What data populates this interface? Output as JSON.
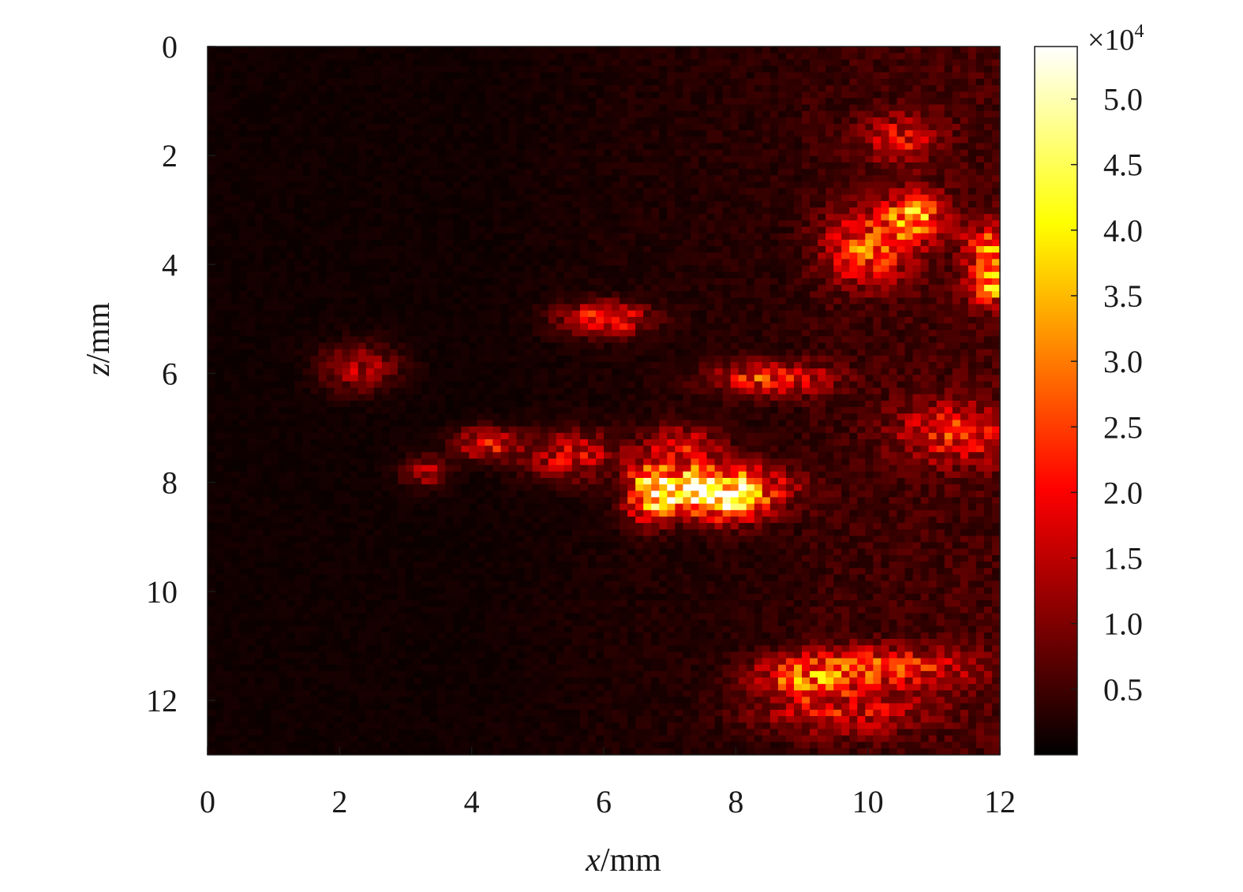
{
  "chart_data": {
    "type": "heatmap",
    "title": "",
    "xlabel": {
      "var": "x",
      "unit": "/mm"
    },
    "ylabel": {
      "var": "z",
      "unit": "/mm"
    },
    "xlim": [
      0,
      12
    ],
    "ylim": [
      0,
      13
    ],
    "y_inverted": true,
    "x_ticks": [
      "0",
      "2",
      "4",
      "6",
      "8",
      "10",
      "12"
    ],
    "y_ticks": [
      "0",
      "2",
      "4",
      "6",
      "8",
      "10",
      "12"
    ],
    "colormap": "hot",
    "colorbar": {
      "range": [
        0,
        5.4
      ],
      "multiplier_base": "×10",
      "multiplier_exp": "4",
      "ticks": [
        "0.5",
        "1.0",
        "1.5",
        "2.0",
        "2.5",
        "3.0",
        "3.5",
        "4.0",
        "4.5",
        "5.0"
      ]
    },
    "grid": false,
    "hotspots": [
      {
        "x": 7.4,
        "z": 8.15,
        "value": 5.2,
        "sx": 0.35,
        "sz": 0.25
      },
      {
        "x": 6.7,
        "z": 8.2,
        "value": 4.0,
        "sx": 0.25,
        "sz": 0.35
      },
      {
        "x": 7.9,
        "z": 8.3,
        "value": 2.8,
        "sx": 0.35,
        "sz": 0.3
      },
      {
        "x": 6.0,
        "z": 5.0,
        "value": 2.4,
        "sx": 0.45,
        "sz": 0.2
      },
      {
        "x": 8.5,
        "z": 6.1,
        "value": 2.3,
        "sx": 0.6,
        "sz": 0.2
      },
      {
        "x": 10.7,
        "z": 3.1,
        "value": 3.0,
        "sx": 0.3,
        "sz": 0.3
      },
      {
        "x": 10.0,
        "z": 3.7,
        "value": 2.4,
        "sx": 0.45,
        "sz": 0.45
      },
      {
        "x": 11.9,
        "z": 3.7,
        "value": 2.5,
        "sx": 0.3,
        "sz": 0.3
      },
      {
        "x": 11.9,
        "z": 4.4,
        "value": 2.8,
        "sx": 0.25,
        "sz": 0.25
      },
      {
        "x": 4.2,
        "z": 7.3,
        "value": 2.2,
        "sx": 0.3,
        "sz": 0.2
      },
      {
        "x": 10.2,
        "z": 11.4,
        "value": 2.2,
        "sx": 0.9,
        "sz": 0.25
      },
      {
        "x": 9.0,
        "z": 11.6,
        "value": 2.0,
        "sx": 0.5,
        "sz": 0.25
      },
      {
        "x": 8.3,
        "z": 8.1,
        "value": 1.8,
        "sx": 0.5,
        "sz": 0.3
      },
      {
        "x": 2.3,
        "z": 5.9,
        "value": 1.4,
        "sx": 0.4,
        "sz": 0.3
      },
      {
        "x": 3.3,
        "z": 7.8,
        "value": 1.4,
        "sx": 0.25,
        "sz": 0.2
      },
      {
        "x": 5.5,
        "z": 7.5,
        "value": 1.8,
        "sx": 0.5,
        "sz": 0.3
      },
      {
        "x": 7.2,
        "z": 7.4,
        "value": 1.8,
        "sx": 0.4,
        "sz": 0.3
      },
      {
        "x": 10.5,
        "z": 1.7,
        "value": 1.6,
        "sx": 0.4,
        "sz": 0.3
      },
      {
        "x": 11.3,
        "z": 7.1,
        "value": 1.8,
        "sx": 0.6,
        "sz": 0.4
      },
      {
        "x": 9.6,
        "z": 12.2,
        "value": 1.5,
        "sx": 0.9,
        "sz": 0.3
      }
    ]
  }
}
